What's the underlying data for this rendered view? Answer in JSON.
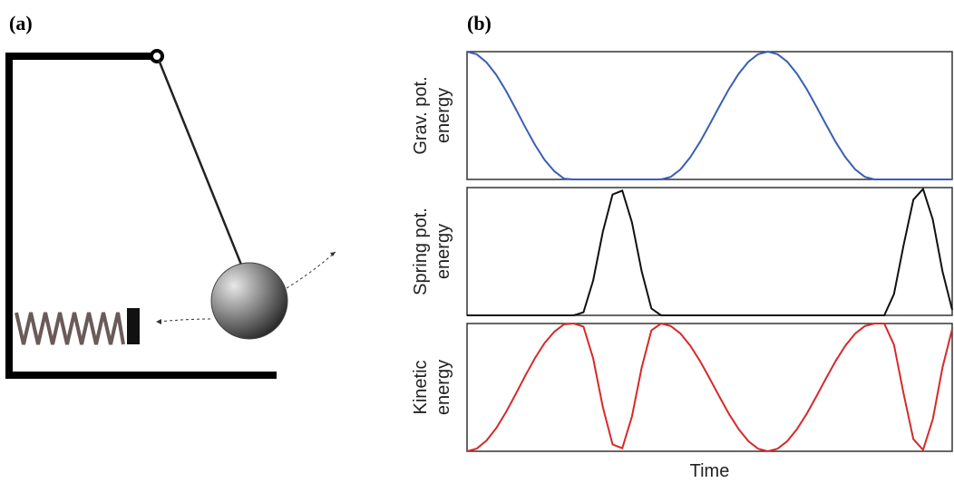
{
  "panel_labels": [
    "(a)",
    "(b)"
  ],
  "chart_data": [
    {
      "type": "line",
      "ylabel": [
        "Grav. pot.",
        "energy"
      ],
      "color": "#3a5fb5",
      "xlim": [
        0,
        100
      ],
      "ylim": [
        0,
        1
      ],
      "x": [
        0,
        2,
        4,
        6,
        8,
        10,
        12,
        14,
        16,
        18,
        20,
        22,
        24,
        26,
        28,
        30,
        32,
        34,
        36,
        38,
        40,
        42,
        44,
        46,
        48,
        50,
        52,
        54,
        56,
        58,
        60,
        62,
        64,
        66,
        68,
        70,
        72,
        74,
        76,
        78,
        80,
        82,
        84,
        86,
        88,
        90,
        92,
        94,
        96,
        98,
        100
      ],
      "values": [
        1,
        0.979,
        0.917,
        0.82,
        0.696,
        0.555,
        0.409,
        0.271,
        0.152,
        0.064,
        0.006,
        0,
        0,
        0,
        0,
        0,
        0,
        0,
        0,
        0,
        0,
        0.02,
        0.079,
        0.173,
        0.292,
        0.429,
        0.571,
        0.708,
        0.827,
        0.921,
        0.98,
        1,
        0.98,
        0.921,
        0.827,
        0.708,
        0.571,
        0.429,
        0.292,
        0.173,
        0.079,
        0.02,
        0,
        0,
        0,
        0,
        0,
        0,
        0,
        0,
        0
      ]
    },
    {
      "type": "line",
      "ylabel": [
        "Spring pot.",
        "energy"
      ],
      "color": "#111111",
      "xlim": [
        0,
        100
      ],
      "ylim": [
        0,
        1
      ],
      "x": [
        0,
        2,
        4,
        6,
        8,
        10,
        12,
        14,
        16,
        18,
        20,
        22,
        24,
        26,
        28,
        30,
        32,
        34,
        36,
        38,
        40,
        42,
        44,
        46,
        48,
        50,
        52,
        54,
        56,
        58,
        60,
        62,
        64,
        66,
        68,
        70,
        72,
        74,
        76,
        78,
        80,
        82,
        84,
        86,
        88,
        90,
        92,
        94,
        96,
        98,
        100
      ],
      "values": [
        0,
        0,
        0,
        0,
        0,
        0,
        0,
        0,
        0,
        0,
        0,
        0,
        0.024,
        0.273,
        0.655,
        0.946,
        0.976,
        0.727,
        0.345,
        0.054,
        0,
        0,
        0,
        0,
        0,
        0,
        0,
        0,
        0,
        0,
        0,
        0,
        0,
        0,
        0,
        0,
        0,
        0,
        0,
        0,
        0,
        0,
        0,
        0,
        0.166,
        0.552,
        0.905,
        0.989,
        0.75,
        0.345,
        0.043
      ]
    },
    {
      "type": "line",
      "ylabel": [
        "Kinetic",
        "energy"
      ],
      "xlabel": "Time",
      "color": "#d62a2a",
      "xlim": [
        0,
        100
      ],
      "ylim": [
        0,
        1
      ],
      "x": [
        0,
        2,
        4,
        6,
        8,
        10,
        12,
        14,
        16,
        18,
        20,
        22,
        24,
        26,
        28,
        30,
        32,
        34,
        36,
        38,
        40,
        42,
        44,
        46,
        48,
        50,
        52,
        54,
        56,
        58,
        60,
        62,
        64,
        66,
        68,
        70,
        72,
        74,
        76,
        78,
        80,
        82,
        84,
        86,
        88,
        90,
        92,
        94,
        96,
        98,
        100
      ],
      "values": [
        0,
        0.021,
        0.083,
        0.18,
        0.304,
        0.445,
        0.591,
        0.729,
        0.848,
        0.936,
        0.994,
        1,
        0.976,
        0.727,
        0.345,
        0.054,
        0.024,
        0.273,
        0.655,
        0.946,
        1,
        0.98,
        0.921,
        0.827,
        0.708,
        0.571,
        0.429,
        0.292,
        0.173,
        0.079,
        0.02,
        0,
        0.02,
        0.079,
        0.173,
        0.292,
        0.429,
        0.571,
        0.708,
        0.827,
        0.921,
        0.98,
        1,
        1,
        0.834,
        0.448,
        0.095,
        0.011,
        0.25,
        0.655,
        0.957
      ]
    }
  ]
}
